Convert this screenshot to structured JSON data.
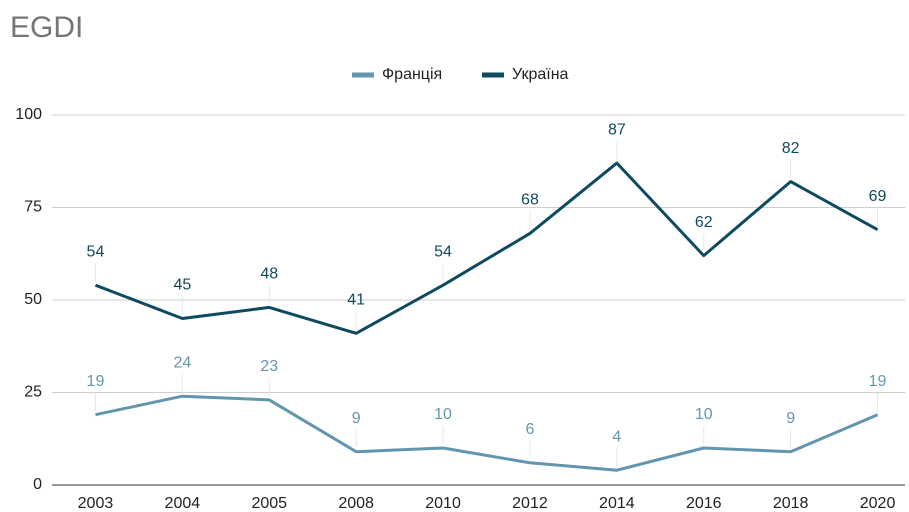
{
  "chart_data": {
    "type": "line",
    "title": "EGDI",
    "categories": [
      "2003",
      "2004",
      "2005",
      "2008",
      "2010",
      "2012",
      "2014",
      "2016",
      "2018",
      "2020"
    ],
    "series": [
      {
        "name": "Франція",
        "color": "#6396ae",
        "values": [
          19,
          24,
          23,
          9,
          10,
          6,
          4,
          10,
          9,
          19
        ]
      },
      {
        "name": "Україна",
        "color": "#0f4a61",
        "values": [
          54,
          45,
          48,
          41,
          54,
          68,
          87,
          62,
          82,
          69
        ]
      }
    ],
    "ylim": [
      0,
      100
    ],
    "yticks": [
      0,
      25,
      50,
      75,
      100
    ],
    "grid": true,
    "legend": "top"
  }
}
